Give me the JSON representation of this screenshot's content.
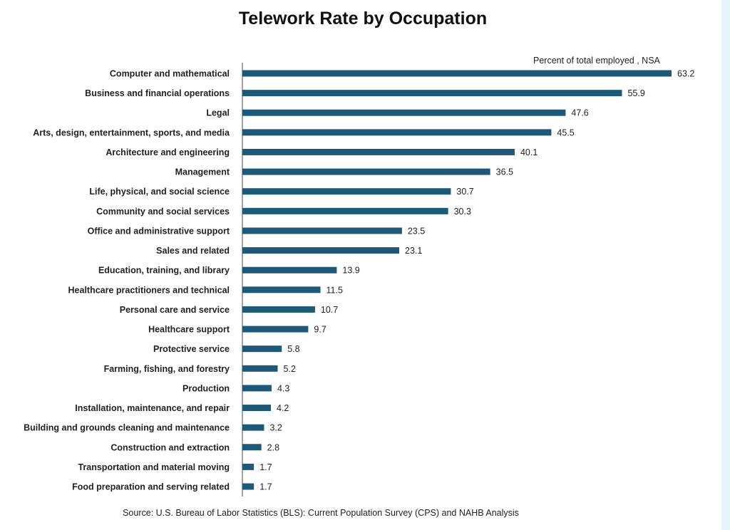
{
  "chart_data": {
    "type": "bar",
    "orientation": "horizontal",
    "title": "Telework Rate by Occupation",
    "unit_label": "Percent of total employed , NSA",
    "source": "Source: U.S. Bureau of Labor Statistics (BLS): Current Population Survey (CPS) and NAHB Analysis",
    "bar_color": "#1d5a7a",
    "grid": false,
    "xlim": [
      0,
      65
    ],
    "categories": [
      "Computer and mathematical",
      "Business and financial operations",
      "Legal",
      "Arts, design, entertainment, sports, and media",
      "Architecture and engineering",
      "Management",
      "Life, physical, and social science",
      "Community and social services",
      "Office and administrative support",
      "Sales and related",
      "Education, training, and library",
      "Healthcare practitioners and technical",
      "Personal care and service",
      "Healthcare support",
      "Protective service",
      "Farming, fishing, and forestry",
      "Production",
      "Installation, maintenance, and repair",
      "Building and grounds cleaning and maintenance",
      "Construction and extraction",
      "Transportation and material moving",
      "Food preparation and serving related"
    ],
    "values": [
      63.2,
      55.9,
      47.6,
      45.5,
      40.1,
      36.5,
      30.7,
      30.3,
      23.5,
      23.1,
      13.9,
      11.5,
      10.7,
      9.7,
      5.8,
      5.2,
      4.3,
      4.2,
      3.2,
      2.8,
      1.7,
      1.7
    ]
  }
}
